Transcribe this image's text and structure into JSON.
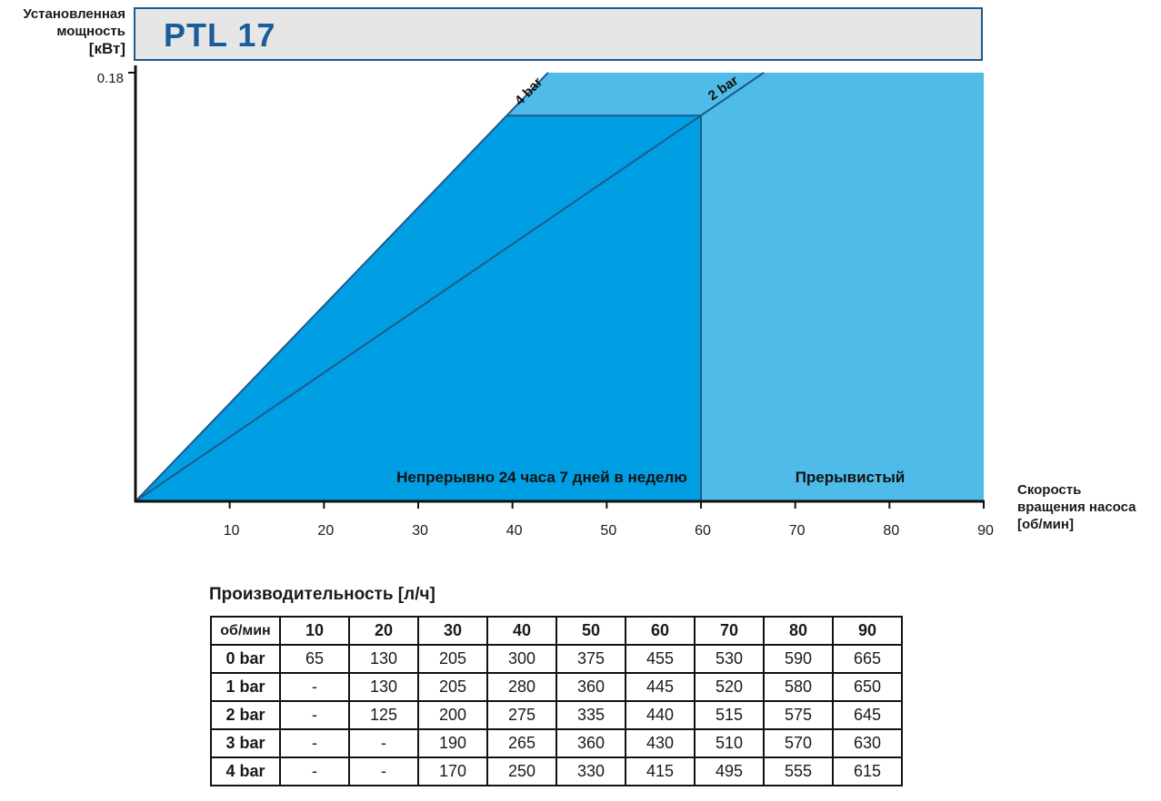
{
  "ylabel": {
    "line1": "Установленная",
    "line2": "мощность",
    "line3": "[кВт]"
  },
  "title": "PTL 17",
  "chart_data": {
    "type": "area",
    "title": "PTL 17",
    "ylabel": "Установленная мощность [кВт]",
    "xlabel": "Скорость вращения насоса [об/мин]",
    "xlim": [
      0,
      90
    ],
    "ylim": [
      0,
      0.18
    ],
    "x_ticks": [
      10,
      20,
      30,
      40,
      50,
      60,
      70,
      80,
      90
    ],
    "y_ticks": [
      0.18
    ],
    "series": [
      {
        "name": "4 bar",
        "x": [
          0,
          39.4,
          60
        ],
        "y": [
          0,
          0.162,
          0.162
        ]
      },
      {
        "name": "2 bar",
        "x": [
          0,
          60
        ],
        "y": [
          0,
          0.162
        ]
      }
    ],
    "regions": [
      {
        "label": "Непрерывно 24 часа 7 дней в неделю",
        "x_range": [
          0,
          60
        ],
        "color": "#009ee3"
      },
      {
        "label": "Прерывистый",
        "x_range": [
          60,
          90
        ],
        "color": "#4fbbe8"
      }
    ],
    "colors": {
      "continuous": "#009ee3",
      "intermittent": "#4fbbe8",
      "line": "#1e5a8c",
      "title": "#1b5d99"
    }
  },
  "table": {
    "title": "Производительность [л/ч]",
    "corner": "об/мин",
    "columns": [
      "10",
      "20",
      "30",
      "40",
      "50",
      "60",
      "70",
      "80",
      "90"
    ],
    "rows": [
      {
        "label": "0 bar",
        "values": [
          "65",
          "130",
          "205",
          "300",
          "375",
          "455",
          "530",
          "590",
          "665"
        ]
      },
      {
        "label": "1 bar",
        "values": [
          "-",
          "130",
          "205",
          "280",
          "360",
          "445",
          "520",
          "580",
          "650"
        ]
      },
      {
        "label": "2 bar",
        "values": [
          "-",
          "125",
          "200",
          "275",
          "335",
          "440",
          "515",
          "575",
          "645"
        ]
      },
      {
        "label": "3 bar",
        "values": [
          "-",
          "-",
          "190",
          "265",
          "360",
          "430",
          "510",
          "570",
          "630"
        ]
      },
      {
        "label": "4 bar",
        "values": [
          "-",
          "-",
          "170",
          "250",
          "330",
          "415",
          "495",
          "555",
          "615"
        ]
      }
    ]
  }
}
